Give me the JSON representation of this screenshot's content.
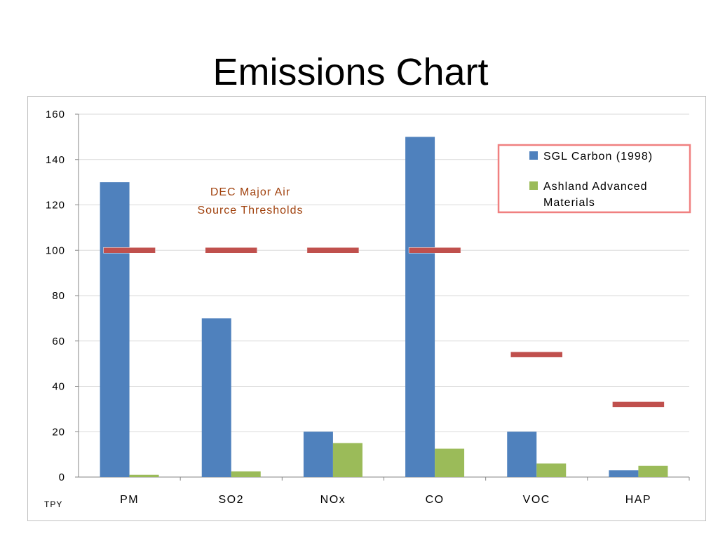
{
  "slide": {
    "title": "Emissions Chart"
  },
  "chart_data": {
    "type": "bar",
    "categories": [
      "PM",
      "SO2",
      "NOx",
      "CO",
      "VOC",
      "HAP"
    ],
    "series": [
      {
        "name": "SGL Carbon (1998)",
        "color": "#4f81bd",
        "values": [
          130,
          70,
          20,
          150,
          20,
          3
        ]
      },
      {
        "name": "Ashland Advanced Materials",
        "color": "#9bbb59",
        "values": [
          1,
          2.5,
          15,
          12.5,
          6,
          5
        ]
      }
    ],
    "thresholds": {
      "color": "#c0504d",
      "values": [
        100,
        100,
        100,
        100,
        54,
        32
      ]
    },
    "annotation": [
      "DEC Major Air",
      "Source Thresholds"
    ],
    "yticks": [
      "0",
      "20",
      "40",
      "60",
      "80",
      "100",
      "120",
      "140",
      "160"
    ],
    "ylim": [
      0,
      160
    ],
    "unit_label": "TPY",
    "legend": {
      "position": "top-right",
      "border_color": "#f08080",
      "lines": [
        [
          "SGL Carbon (1998)"
        ],
        [
          "Ashland Advanced",
          "Materials"
        ]
      ]
    },
    "grid": true
  }
}
